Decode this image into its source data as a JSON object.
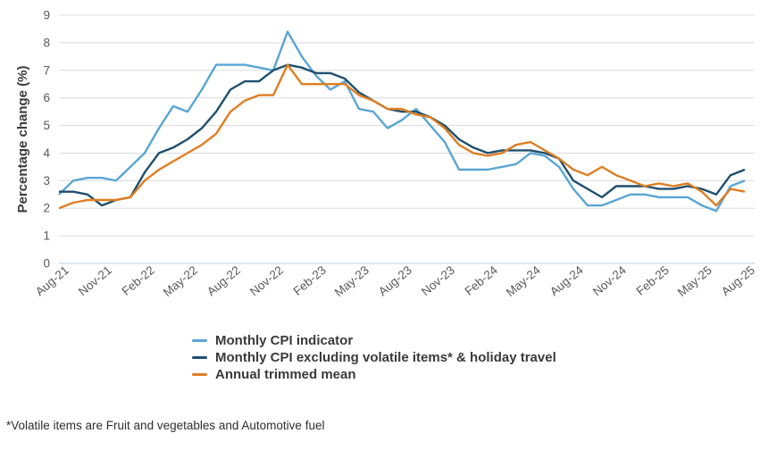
{
  "figure": {
    "ylabel": "Percentage change (%)",
    "footnote": "*Volatile items are Fruit and vegetables and Automotive fuel"
  },
  "chart_data": {
    "type": "line",
    "title": "",
    "xlabel": "",
    "ylabel": "Percentage change (%)",
    "ylim": [
      0,
      9
    ],
    "y_ticks": [
      0,
      1,
      2,
      3,
      4,
      5,
      6,
      7,
      8,
      9
    ],
    "grid": "horizontal",
    "legend_position": "bottom-left",
    "footnote": "*Volatile items are Fruit and vegetables and Automotive fuel",
    "x": [
      "Aug-21",
      "Sep-21",
      "Oct-21",
      "Nov-21",
      "Dec-21",
      "Jan-22",
      "Feb-22",
      "Mar-22",
      "Apr-22",
      "May-22",
      "Jun-22",
      "Jul-22",
      "Aug-22",
      "Sep-22",
      "Oct-22",
      "Nov-22",
      "Dec-22",
      "Jan-23",
      "Feb-23",
      "Mar-23",
      "Apr-23",
      "May-23",
      "Jun-23",
      "Jul-23",
      "Aug-23",
      "Sep-23",
      "Oct-23",
      "Nov-23",
      "Dec-23",
      "Jan-24",
      "Feb-24",
      "Mar-24",
      "Apr-24",
      "May-24",
      "Jun-24",
      "Jul-24",
      "Aug-24",
      "Sep-24",
      "Oct-24",
      "Nov-24",
      "Dec-24",
      "Jan-25",
      "Feb-25",
      "Mar-25",
      "Apr-25",
      "May-25",
      "Jun-25",
      "Jul-25",
      "Aug-25"
    ],
    "x_tick_every": 3,
    "x_tick_labels": [
      "Aug-21",
      "Nov-21",
      "Feb-22",
      "May-22",
      "Aug-22",
      "Nov-22",
      "Feb-23",
      "May-23",
      "Aug-23",
      "Nov-23",
      "Feb-24",
      "May-24",
      "Aug-24",
      "Nov-24",
      "Feb-25",
      "May-25",
      "Aug-25"
    ],
    "series": [
      {
        "name": "Monthly CPI indicator",
        "color": "#59A5D3",
        "values": [
          2.5,
          3.0,
          3.1,
          3.1,
          3.0,
          3.5,
          4.0,
          4.9,
          5.7,
          5.5,
          6.3,
          7.2,
          7.2,
          7.2,
          7.1,
          7.0,
          8.4,
          7.5,
          6.8,
          6.3,
          6.6,
          5.6,
          5.5,
          4.9,
          5.2,
          5.6,
          5.0,
          4.4,
          3.4,
          3.4,
          3.4,
          3.5,
          3.6,
          4.0,
          3.9,
          3.5,
          2.7,
          2.1,
          2.1,
          2.3,
          2.5,
          2.5,
          2.4,
          2.4,
          2.4,
          2.1,
          1.9,
          2.8,
          3.0
        ]
      },
      {
        "name": "Monthly CPI excluding volatile items* & holiday travel",
        "color": "#1E4F6E",
        "values": [
          2.6,
          2.6,
          2.5,
          2.1,
          2.3,
          2.4,
          3.3,
          4.0,
          4.2,
          4.5,
          4.9,
          5.5,
          6.3,
          6.6,
          6.6,
          7.0,
          7.2,
          7.1,
          6.9,
          6.9,
          6.7,
          6.2,
          5.9,
          5.6,
          5.5,
          5.5,
          5.3,
          5.0,
          4.5,
          4.2,
          4.0,
          4.1,
          4.1,
          4.1,
          4.0,
          3.8,
          3.0,
          2.7,
          2.4,
          2.8,
          2.8,
          2.8,
          2.7,
          2.7,
          2.8,
          2.7,
          2.5,
          3.2,
          3.4
        ]
      },
      {
        "name": "Annual trimmed mean",
        "color": "#DF7E22",
        "values": [
          2.0,
          2.2,
          2.3,
          2.3,
          2.3,
          2.4,
          3.0,
          3.4,
          3.7,
          4.0,
          4.3,
          4.7,
          5.5,
          5.9,
          6.1,
          6.1,
          7.2,
          6.5,
          6.5,
          6.5,
          6.5,
          6.1,
          5.9,
          5.6,
          5.6,
          5.4,
          5.3,
          4.9,
          4.3,
          4.0,
          3.9,
          4.0,
          4.3,
          4.4,
          4.1,
          3.8,
          3.4,
          3.2,
          3.5,
          3.2,
          3.0,
          2.8,
          2.9,
          2.8,
          2.9,
          2.6,
          2.1,
          2.7,
          2.6
        ]
      }
    ],
    "style": {
      "gridline_color": "#DCDCDC",
      "zero_line_color": "#B7CDE2",
      "tick_label_color": "#595959",
      "axis_title_color": "#3A3A3A",
      "background": "#FFFFFF"
    }
  }
}
